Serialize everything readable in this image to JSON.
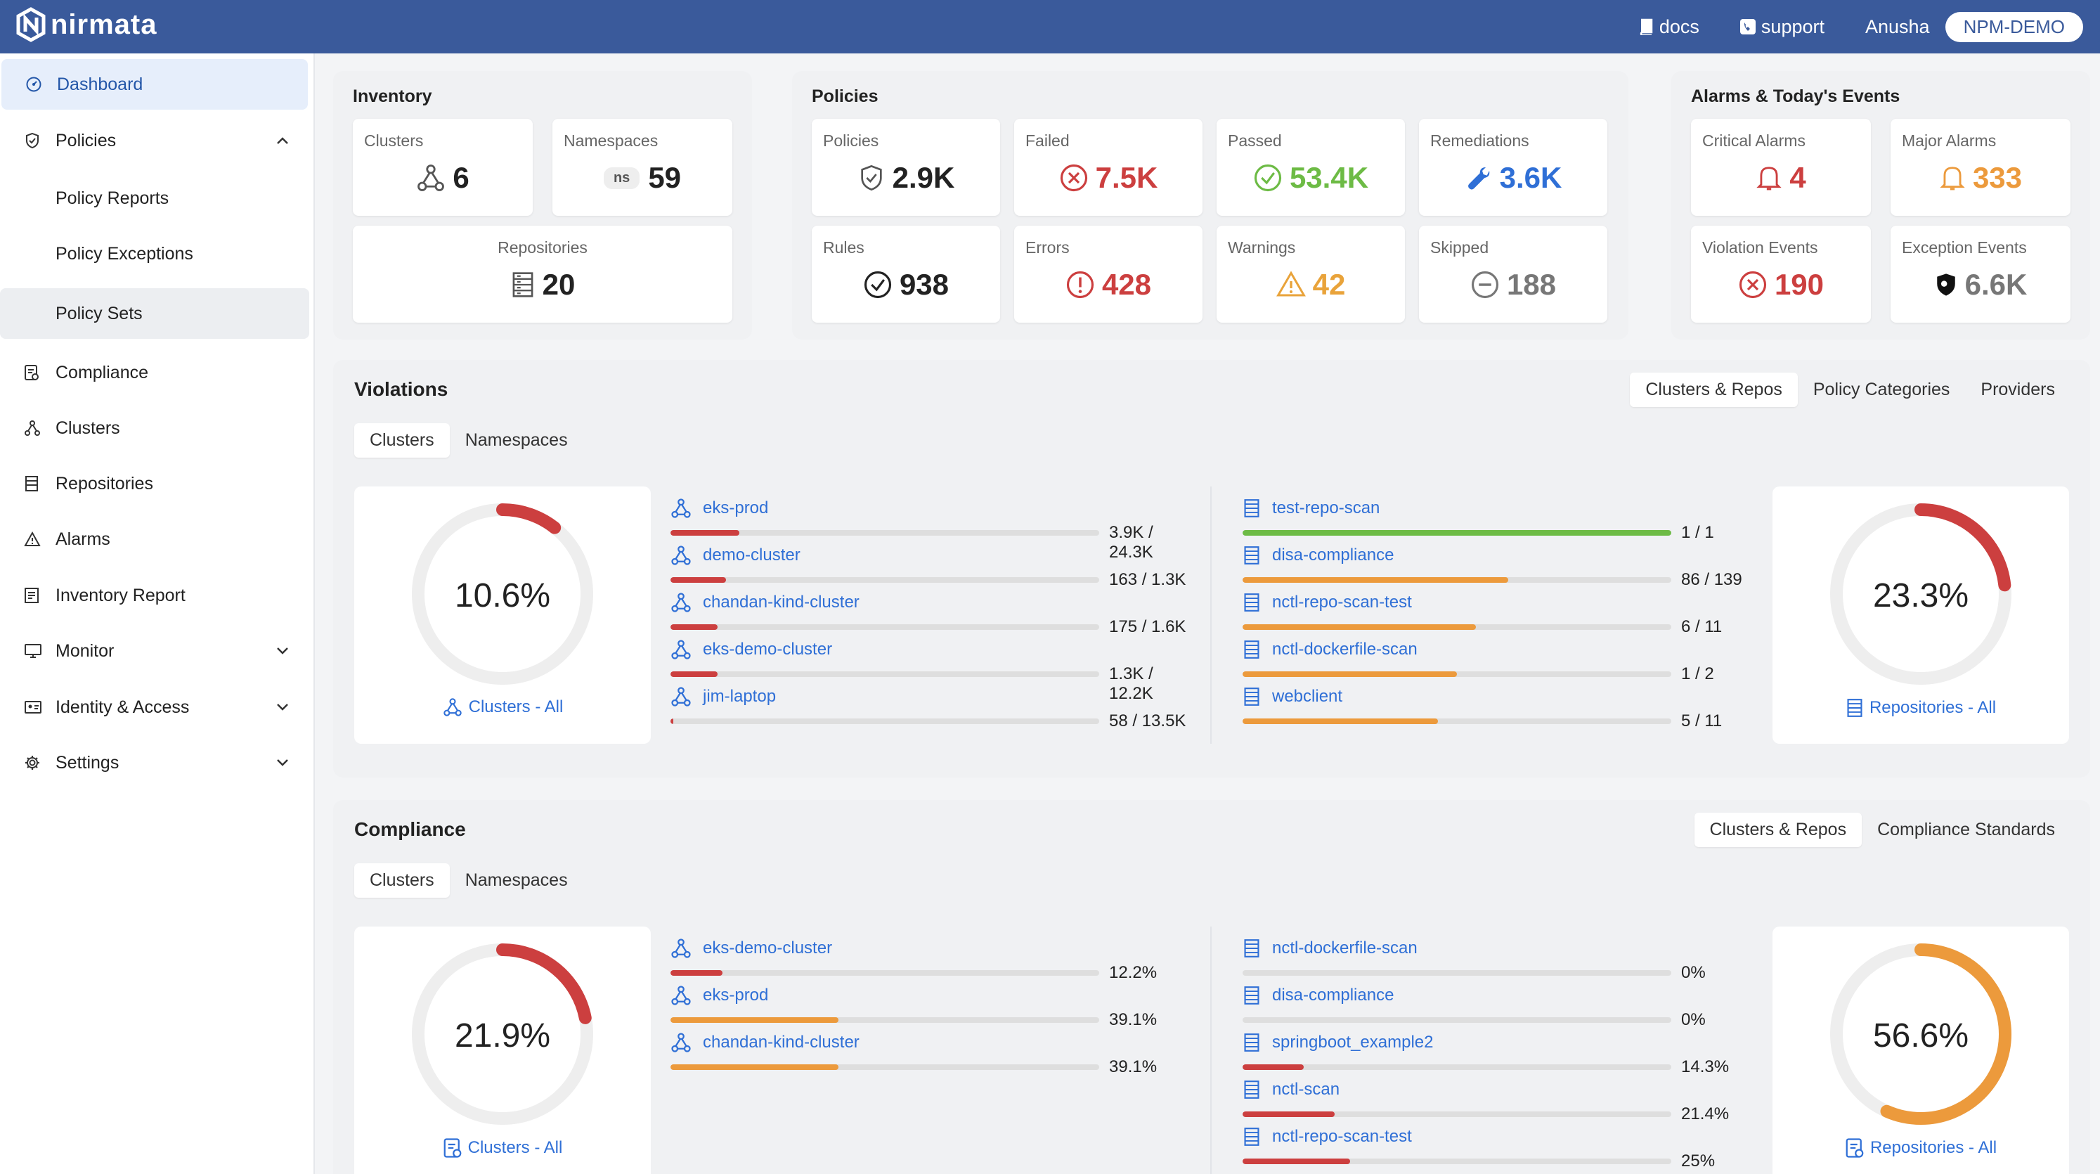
{
  "header": {
    "logo_text": "nirmata",
    "docs_label": "docs",
    "support_label": "support",
    "user_name": "Anusha",
    "org_name": "NPM-DEMO"
  },
  "sidebar": {
    "items": [
      {
        "label": "Dashboard",
        "icon": "gauge-icon"
      },
      {
        "label": "Policies",
        "icon": "shield-icon"
      },
      {
        "label": "Policy Reports"
      },
      {
        "label": "Policy Exceptions"
      },
      {
        "label": "Policy Sets"
      },
      {
        "label": "Compliance",
        "icon": "compliance-icon"
      },
      {
        "label": "Clusters",
        "icon": "cluster-icon"
      },
      {
        "label": "Repositories",
        "icon": "repo-icon"
      },
      {
        "label": "Alarms",
        "icon": "warning-icon"
      },
      {
        "label": "Inventory Report",
        "icon": "report-icon"
      },
      {
        "label": "Monitor",
        "icon": "monitor-icon"
      },
      {
        "label": "Identity & Access",
        "icon": "id-card-icon"
      },
      {
        "label": "Settings",
        "icon": "gear-icon"
      }
    ]
  },
  "inventory": {
    "title": "Inventory",
    "clusters": {
      "label": "Clusters",
      "value": "6"
    },
    "namespaces": {
      "label": "Namespaces",
      "badge": "ns",
      "value": "59"
    },
    "repositories": {
      "label": "Repositories",
      "value": "20"
    }
  },
  "policies": {
    "title": "Policies",
    "policies": {
      "label": "Policies",
      "value": "2.9K"
    },
    "failed": {
      "label": "Failed",
      "value": "7.5K"
    },
    "passed": {
      "label": "Passed",
      "value": "53.4K"
    },
    "remediations": {
      "label": "Remediations",
      "value": "3.6K"
    },
    "rules": {
      "label": "Rules",
      "value": "938"
    },
    "errors": {
      "label": "Errors",
      "value": "428"
    },
    "warnings": {
      "label": "Warnings",
      "value": "42"
    },
    "skipped": {
      "label": "Skipped",
      "value": "188"
    }
  },
  "alarms": {
    "title": "Alarms & Today's Events",
    "critical": {
      "label": "Critical Alarms",
      "value": "4"
    },
    "major": {
      "label": "Major Alarms",
      "value": "333"
    },
    "violation_events": {
      "label": "Violation Events",
      "value": "190"
    },
    "exception_events": {
      "label": "Exception Events",
      "value": "6.6K"
    }
  },
  "violations": {
    "title": "Violations",
    "view_tabs": [
      "Clusters & Repos",
      "Policy Categories",
      "Providers"
    ],
    "scope_tabs": [
      "Clusters",
      "Namespaces"
    ],
    "clusters_donut": {
      "percent": 10.6,
      "label": "10.6%",
      "link": "Clusters - All"
    },
    "repos_donut": {
      "percent": 23.3,
      "label": "23.3%",
      "link": "Repositories - All"
    },
    "clusters": [
      {
        "name": "eks-prod",
        "value": "3.9K / 24.3K",
        "fraction": 0.16
      },
      {
        "name": "demo-cluster",
        "value": "163 / 1.3K",
        "fraction": 0.13
      },
      {
        "name": "chandan-kind-cluster",
        "value": "175 / 1.6K",
        "fraction": 0.11
      },
      {
        "name": "eks-demo-cluster",
        "value": "1.3K / 12.2K",
        "fraction": 0.11
      },
      {
        "name": "jim-laptop",
        "value": "58 / 13.5K",
        "fraction": 0.004
      }
    ],
    "repos": [
      {
        "name": "test-repo-scan",
        "value": "1 / 1",
        "fraction": 1.0,
        "color": "#6dbb45"
      },
      {
        "name": "disa-compliance",
        "value": "86 / 139",
        "fraction": 0.62,
        "color": "#ec9a3c"
      },
      {
        "name": "nctl-repo-scan-test",
        "value": "6 / 11",
        "fraction": 0.545,
        "color": "#ec9a3c"
      },
      {
        "name": "nctl-dockerfile-scan",
        "value": "1 / 2",
        "fraction": 0.5,
        "color": "#ec9a3c"
      },
      {
        "name": "webclient",
        "value": "5 / 11",
        "fraction": 0.455,
        "color": "#ec9a3c"
      }
    ]
  },
  "compliance": {
    "title": "Compliance",
    "view_tabs": [
      "Clusters & Repos",
      "Compliance Standards"
    ],
    "scope_tabs": [
      "Clusters",
      "Namespaces"
    ],
    "clusters_donut": {
      "percent": 21.9,
      "label": "21.9%",
      "link": "Clusters - All"
    },
    "repos_donut": {
      "percent": 56.6,
      "label": "56.6%",
      "link": "Repositories - All"
    },
    "clusters": [
      {
        "name": "eks-demo-cluster",
        "value": "12.2%",
        "fraction": 0.122,
        "color": "#cc3f3f"
      },
      {
        "name": "eks-prod",
        "value": "39.1%",
        "fraction": 0.391,
        "color": "#ec9a3c"
      },
      {
        "name": "chandan-kind-cluster",
        "value": "39.1%",
        "fraction": 0.391,
        "color": "#ec9a3c"
      }
    ],
    "repos": [
      {
        "name": "nctl-dockerfile-scan",
        "value": "0%",
        "fraction": 0,
        "color": "#cc3f3f"
      },
      {
        "name": "disa-compliance",
        "value": "0%",
        "fraction": 0,
        "color": "#cc3f3f"
      },
      {
        "name": "springboot_example2",
        "value": "14.3%",
        "fraction": 0.143,
        "color": "#cc3f3f"
      },
      {
        "name": "nctl-scan",
        "value": "21.4%",
        "fraction": 0.214,
        "color": "#cc3f3f"
      },
      {
        "name": "nctl-repo-scan-test",
        "value": "25%",
        "fraction": 0.25,
        "color": "#cc3f3f"
      }
    ]
  },
  "colors": {
    "brand": "#3a5a9b",
    "link": "#2f6fd6",
    "red": "#cc3f3f",
    "orange": "#ec9a3c",
    "green": "#6dbb45",
    "blue": "#2f6fd6"
  }
}
